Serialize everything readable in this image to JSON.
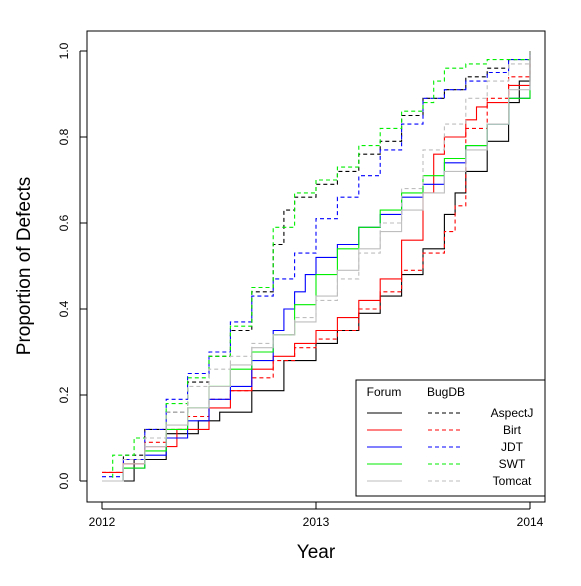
{
  "chart_data": {
    "type": "line",
    "xlabel": "Year",
    "ylabel": "Proportion of Defects",
    "xlim": [
      2012,
      2014
    ],
    "ylim": [
      0,
      1
    ],
    "x_ticks": [
      {
        "value": 2012,
        "label": "2012"
      },
      {
        "value": 2013,
        "label": "2013"
      },
      {
        "value": 2014,
        "label": "2014"
      }
    ],
    "y_ticks": [
      {
        "value": 0.0,
        "label": "0.0"
      },
      {
        "value": 0.2,
        "label": "0.2"
      },
      {
        "value": 0.4,
        "label": "0.4"
      },
      {
        "value": 0.6,
        "label": "0.6"
      },
      {
        "value": 0.8,
        "label": "0.8"
      },
      {
        "value": 1.0,
        "label": "1.0"
      }
    ],
    "grid": false,
    "legend": {
      "placement": "bottom-right",
      "column_headers": [
        "Forum",
        "BugDB"
      ],
      "entries": [
        "AspectJ",
        "Birt",
        "JDT",
        "SWT",
        "Tomcat"
      ]
    },
    "colors": {
      "AspectJ": "#000000",
      "Birt": "#ff0000",
      "JDT": "#0000ff",
      "SWT": "#00ee00",
      "Tomcat": "#bebebe"
    },
    "series": [
      {
        "project": "AspectJ",
        "source": "Forum",
        "dashed": false,
        "points": [
          [
            2012.0,
            0.0
          ],
          [
            2012.15,
            0.05
          ],
          [
            2012.3,
            0.11
          ],
          [
            2012.45,
            0.14
          ],
          [
            2012.55,
            0.16
          ],
          [
            2012.7,
            0.21
          ],
          [
            2012.85,
            0.28
          ],
          [
            2013.0,
            0.32
          ],
          [
            2013.1,
            0.35
          ],
          [
            2013.2,
            0.39
          ],
          [
            2013.3,
            0.43
          ],
          [
            2013.4,
            0.48
          ],
          [
            2013.5,
            0.54
          ],
          [
            2013.6,
            0.62
          ],
          [
            2013.65,
            0.67
          ],
          [
            2013.7,
            0.72
          ],
          [
            2013.8,
            0.79
          ],
          [
            2013.9,
            0.88
          ],
          [
            2013.95,
            0.93
          ],
          [
            2014.0,
            1.0
          ]
        ]
      },
      {
        "project": "AspectJ",
        "source": "BugDB",
        "dashed": true,
        "points": [
          [
            2012.0,
            0.0
          ],
          [
            2012.1,
            0.06
          ],
          [
            2012.2,
            0.12
          ],
          [
            2012.3,
            0.16
          ],
          [
            2012.4,
            0.23
          ],
          [
            2012.5,
            0.29
          ],
          [
            2012.6,
            0.35
          ],
          [
            2012.7,
            0.44
          ],
          [
            2012.8,
            0.55
          ],
          [
            2012.85,
            0.63
          ],
          [
            2012.9,
            0.66
          ],
          [
            2013.0,
            0.69
          ],
          [
            2013.1,
            0.72
          ],
          [
            2013.2,
            0.76
          ],
          [
            2013.3,
            0.79
          ],
          [
            2013.4,
            0.85
          ],
          [
            2013.5,
            0.89
          ],
          [
            2013.6,
            0.91
          ],
          [
            2013.7,
            0.94
          ],
          [
            2013.8,
            0.96
          ],
          [
            2013.9,
            0.98
          ],
          [
            2014.0,
            1.0
          ]
        ]
      },
      {
        "project": "Birt",
        "source": "Forum",
        "dashed": false,
        "points": [
          [
            2012.0,
            0.02
          ],
          [
            2012.1,
            0.04
          ],
          [
            2012.2,
            0.08
          ],
          [
            2012.35,
            0.12
          ],
          [
            2012.5,
            0.17
          ],
          [
            2012.6,
            0.21
          ],
          [
            2012.7,
            0.26
          ],
          [
            2012.8,
            0.29
          ],
          [
            2012.9,
            0.32
          ],
          [
            2013.0,
            0.35
          ],
          [
            2013.1,
            0.38
          ],
          [
            2013.2,
            0.42
          ],
          [
            2013.3,
            0.47
          ],
          [
            2013.4,
            0.56
          ],
          [
            2013.5,
            0.67
          ],
          [
            2013.55,
            0.76
          ],
          [
            2013.6,
            0.8
          ],
          [
            2013.7,
            0.84
          ],
          [
            2013.75,
            0.87
          ],
          [
            2013.8,
            0.88
          ],
          [
            2013.9,
            0.92
          ],
          [
            2014.0,
            1.0
          ]
        ]
      },
      {
        "project": "Birt",
        "source": "BugDB",
        "dashed": true,
        "points": [
          [
            2012.0,
            0.02
          ],
          [
            2012.1,
            0.05
          ],
          [
            2012.2,
            0.09
          ],
          [
            2012.3,
            0.12
          ],
          [
            2012.4,
            0.15
          ],
          [
            2012.5,
            0.19
          ],
          [
            2012.6,
            0.21
          ],
          [
            2012.7,
            0.24
          ],
          [
            2012.8,
            0.28
          ],
          [
            2012.9,
            0.31
          ],
          [
            2013.0,
            0.33
          ],
          [
            2013.1,
            0.35
          ],
          [
            2013.2,
            0.4
          ],
          [
            2013.3,
            0.44
          ],
          [
            2013.4,
            0.49
          ],
          [
            2013.5,
            0.53
          ],
          [
            2013.6,
            0.58
          ],
          [
            2013.65,
            0.64
          ],
          [
            2013.7,
            0.82
          ],
          [
            2013.8,
            0.89
          ],
          [
            2013.9,
            0.94
          ],
          [
            2014.0,
            1.0
          ]
        ]
      },
      {
        "project": "JDT",
        "source": "Forum",
        "dashed": false,
        "points": [
          [
            2012.0,
            0.0
          ],
          [
            2012.1,
            0.03
          ],
          [
            2012.2,
            0.06
          ],
          [
            2012.3,
            0.1
          ],
          [
            2012.4,
            0.14
          ],
          [
            2012.5,
            0.19
          ],
          [
            2012.6,
            0.22
          ],
          [
            2012.7,
            0.28
          ],
          [
            2012.8,
            0.35
          ],
          [
            2012.85,
            0.4
          ],
          [
            2012.9,
            0.44
          ],
          [
            2012.95,
            0.48
          ],
          [
            2013.0,
            0.52
          ],
          [
            2013.1,
            0.55
          ],
          [
            2013.2,
            0.59
          ],
          [
            2013.3,
            0.62
          ],
          [
            2013.4,
            0.66
          ],
          [
            2013.5,
            0.69
          ],
          [
            2013.6,
            0.74
          ],
          [
            2013.7,
            0.78
          ],
          [
            2013.8,
            0.83
          ],
          [
            2013.9,
            0.89
          ],
          [
            2014.0,
            1.0
          ]
        ]
      },
      {
        "project": "JDT",
        "source": "BugDB",
        "dashed": true,
        "points": [
          [
            2012.0,
            0.01
          ],
          [
            2012.1,
            0.05
          ],
          [
            2012.2,
            0.12
          ],
          [
            2012.3,
            0.19
          ],
          [
            2012.4,
            0.25
          ],
          [
            2012.5,
            0.3
          ],
          [
            2012.6,
            0.37
          ],
          [
            2012.7,
            0.43
          ],
          [
            2012.8,
            0.47
          ],
          [
            2012.9,
            0.53
          ],
          [
            2013.0,
            0.61
          ],
          [
            2013.1,
            0.66
          ],
          [
            2013.2,
            0.71
          ],
          [
            2013.3,
            0.77
          ],
          [
            2013.4,
            0.83
          ],
          [
            2013.5,
            0.89
          ],
          [
            2013.6,
            0.91
          ],
          [
            2013.7,
            0.93
          ],
          [
            2013.8,
            0.95
          ],
          [
            2013.9,
            0.98
          ],
          [
            2014.0,
            1.0
          ]
        ]
      },
      {
        "project": "SWT",
        "source": "Forum",
        "dashed": false,
        "points": [
          [
            2012.0,
            0.0
          ],
          [
            2012.1,
            0.03
          ],
          [
            2012.2,
            0.07
          ],
          [
            2012.3,
            0.12
          ],
          [
            2012.4,
            0.17
          ],
          [
            2012.5,
            0.22
          ],
          [
            2012.6,
            0.26
          ],
          [
            2012.7,
            0.3
          ],
          [
            2012.8,
            0.34
          ],
          [
            2012.9,
            0.41
          ],
          [
            2013.0,
            0.48
          ],
          [
            2013.1,
            0.54
          ],
          [
            2013.2,
            0.59
          ],
          [
            2013.3,
            0.63
          ],
          [
            2013.4,
            0.67
          ],
          [
            2013.5,
            0.71
          ],
          [
            2013.6,
            0.75
          ],
          [
            2013.7,
            0.78
          ],
          [
            2013.8,
            0.83
          ],
          [
            2013.9,
            0.89
          ],
          [
            2014.0,
            1.0
          ]
        ]
      },
      {
        "project": "SWT",
        "source": "BugDB",
        "dashed": true,
        "points": [
          [
            2012.0,
            0.0
          ],
          [
            2012.05,
            0.06
          ],
          [
            2012.15,
            0.1
          ],
          [
            2012.3,
            0.18
          ],
          [
            2012.4,
            0.24
          ],
          [
            2012.5,
            0.29
          ],
          [
            2012.6,
            0.36
          ],
          [
            2012.7,
            0.45
          ],
          [
            2012.8,
            0.59
          ],
          [
            2012.9,
            0.67
          ],
          [
            2013.0,
            0.7
          ],
          [
            2013.1,
            0.73
          ],
          [
            2013.2,
            0.78
          ],
          [
            2013.3,
            0.82
          ],
          [
            2013.4,
            0.86
          ],
          [
            2013.5,
            0.88
          ],
          [
            2013.55,
            0.93
          ],
          [
            2013.6,
            0.96
          ],
          [
            2013.7,
            0.97
          ],
          [
            2013.8,
            0.98
          ],
          [
            2014.0,
            1.0
          ]
        ]
      },
      {
        "project": "Tomcat",
        "source": "Forum",
        "dashed": false,
        "points": [
          [
            2012.0,
            0.0
          ],
          [
            2012.1,
            0.04
          ],
          [
            2012.2,
            0.08
          ],
          [
            2012.3,
            0.13
          ],
          [
            2012.4,
            0.17
          ],
          [
            2012.5,
            0.22
          ],
          [
            2012.6,
            0.27
          ],
          [
            2012.7,
            0.31
          ],
          [
            2012.8,
            0.34
          ],
          [
            2012.9,
            0.37
          ],
          [
            2013.0,
            0.43
          ],
          [
            2013.1,
            0.49
          ],
          [
            2013.2,
            0.54
          ],
          [
            2013.3,
            0.58
          ],
          [
            2013.4,
            0.63
          ],
          [
            2013.5,
            0.67
          ],
          [
            2013.6,
            0.72
          ],
          [
            2013.7,
            0.77
          ],
          [
            2013.8,
            0.83
          ],
          [
            2013.9,
            0.91
          ],
          [
            2014.0,
            1.0
          ]
        ]
      },
      {
        "project": "Tomcat",
        "source": "BugDB",
        "dashed": true,
        "points": [
          [
            2012.0,
            0.0
          ],
          [
            2012.1,
            0.05
          ],
          [
            2012.2,
            0.1
          ],
          [
            2012.3,
            0.16
          ],
          [
            2012.4,
            0.22
          ],
          [
            2012.5,
            0.26
          ],
          [
            2012.6,
            0.29
          ],
          [
            2012.7,
            0.32
          ],
          [
            2012.8,
            0.34
          ],
          [
            2012.9,
            0.38
          ],
          [
            2013.0,
            0.42
          ],
          [
            2013.1,
            0.47
          ],
          [
            2013.2,
            0.53
          ],
          [
            2013.3,
            0.6
          ],
          [
            2013.4,
            0.68
          ],
          [
            2013.5,
            0.77
          ],
          [
            2013.6,
            0.83
          ],
          [
            2013.7,
            0.89
          ],
          [
            2013.8,
            0.93
          ],
          [
            2013.9,
            0.97
          ],
          [
            2014.0,
            1.0
          ]
        ]
      }
    ]
  }
}
